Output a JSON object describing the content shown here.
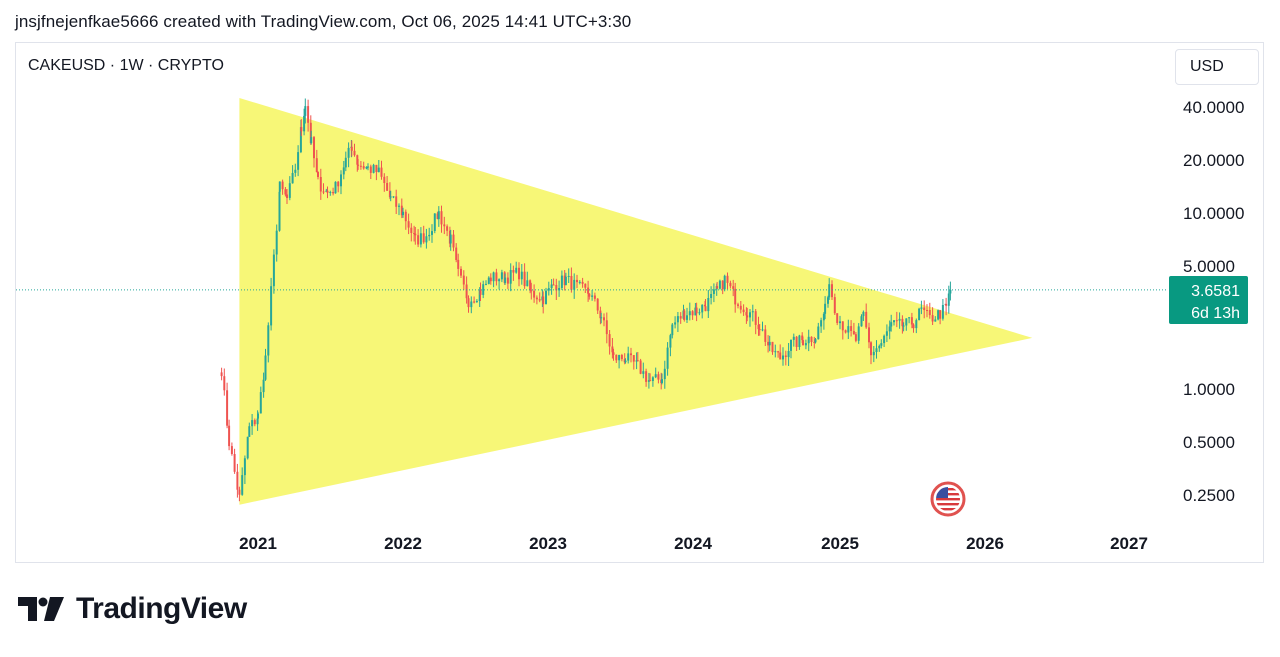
{
  "header": {
    "caption": "jnsjfnejenfkae5666 created with TradingView.com, Oct 06, 2025 14:41 UTC+3:30"
  },
  "chart": {
    "symbol_label": "CAKEUSD · 1W · CRYPTO",
    "currency_button": "USD",
    "price_tag": {
      "price": "3.6581",
      "countdown": "6d 13h"
    }
  },
  "footer": {
    "brand": "TradingView"
  },
  "colors": {
    "up": "#26a69a",
    "down": "#ef5350",
    "triangle": "#f7f777",
    "price_tag": "#089981",
    "price_line": "#26a69a"
  },
  "chart_data": {
    "type": "candlestick",
    "title": "CAKEUSD · 1W · CRYPTO",
    "y_scale": "log",
    "y_ticks": [
      "40.0000",
      "20.0000",
      "10.0000",
      "5.0000",
      "1.0000",
      "0.5000",
      "0.2500"
    ],
    "x_ticks": [
      "2021",
      "2022",
      "2023",
      "2024",
      "2025",
      "2026",
      "2027"
    ],
    "last_price": 3.6581,
    "series": [
      {
        "name": "CAKEUSD close (weekly)",
        "points": [
          [
            "2020-10-01",
            1.3
          ],
          [
            "2020-10-20",
            0.5
          ],
          [
            "2020-11-15",
            0.24
          ],
          [
            "2020-12-10",
            0.6
          ],
          [
            "2021-01-01",
            0.7
          ],
          [
            "2021-01-20",
            1.5
          ],
          [
            "2021-02-10",
            5.5
          ],
          [
            "2021-02-25",
            14
          ],
          [
            "2021-03-15",
            12
          ],
          [
            "2021-04-05",
            18
          ],
          [
            "2021-04-20",
            30
          ],
          [
            "2021-04-30",
            42
          ],
          [
            "2021-05-15",
            25
          ],
          [
            "2021-06-01",
            15
          ],
          [
            "2021-06-25",
            13
          ],
          [
            "2021-07-15",
            14
          ],
          [
            "2021-08-10",
            20
          ],
          [
            "2021-08-25",
            24
          ],
          [
            "2021-09-10",
            19
          ],
          [
            "2021-10-05",
            18
          ],
          [
            "2021-11-01",
            17
          ],
          [
            "2021-12-01",
            12
          ],
          [
            "2022-01-01",
            10
          ],
          [
            "2022-02-01",
            7
          ],
          [
            "2022-03-01",
            7.5
          ],
          [
            "2022-04-01",
            10
          ],
          [
            "2022-05-01",
            7
          ],
          [
            "2022-05-20",
            4.5
          ],
          [
            "2022-06-15",
            3.2
          ],
          [
            "2022-07-15",
            3.6
          ],
          [
            "2022-08-10",
            4.3
          ],
          [
            "2022-09-15",
            4.3
          ],
          [
            "2022-10-20",
            4.6
          ],
          [
            "2022-11-20",
            3.5
          ],
          [
            "2022-12-20",
            3.3
          ],
          [
            "2023-01-15",
            3.9
          ],
          [
            "2023-02-15",
            4.2
          ],
          [
            "2023-03-15",
            3.8
          ],
          [
            "2023-04-15",
            3.5
          ],
          [
            "2023-05-15",
            2.6
          ],
          [
            "2023-06-15",
            1.5
          ],
          [
            "2023-07-15",
            1.5
          ],
          [
            "2023-08-15",
            1.35
          ],
          [
            "2023-09-15",
            1.1
          ],
          [
            "2023-10-15",
            1.15
          ],
          [
            "2023-11-10",
            2.3
          ],
          [
            "2023-12-10",
            2.7
          ],
          [
            "2024-01-10",
            2.8
          ],
          [
            "2024-02-01",
            3.0
          ],
          [
            "2024-03-01",
            3.6
          ],
          [
            "2024-03-20",
            4.2
          ],
          [
            "2024-04-15",
            3.3
          ],
          [
            "2024-05-15",
            2.8
          ],
          [
            "2024-06-15",
            2.3
          ],
          [
            "2024-07-10",
            1.7
          ],
          [
            "2024-08-05",
            1.5
          ],
          [
            "2024-09-01",
            1.8
          ],
          [
            "2024-10-01",
            1.9
          ],
          [
            "2024-11-01",
            2.0
          ],
          [
            "2024-11-25",
            2.8
          ],
          [
            "2024-12-05",
            4.0
          ],
          [
            "2024-12-25",
            2.6
          ],
          [
            "2025-01-15",
            2.2
          ],
          [
            "2025-02-10",
            1.9
          ],
          [
            "2025-03-01",
            2.6
          ],
          [
            "2025-03-20",
            1.6
          ],
          [
            "2025-04-15",
            1.8
          ],
          [
            "2025-05-10",
            2.3
          ],
          [
            "2025-06-10",
            2.3
          ],
          [
            "2025-07-05",
            2.4
          ],
          [
            "2025-07-25",
            2.8
          ],
          [
            "2025-08-15",
            2.5
          ],
          [
            "2025-09-10",
            2.7
          ],
          [
            "2025-09-25",
            2.9
          ],
          [
            "2025-10-06",
            3.6581
          ]
        ]
      }
    ],
    "annotations": [
      {
        "type": "triangle",
        "points": [
          [
            "2020-11-15",
            0.22
          ],
          [
            "2020-11-15",
            45
          ],
          [
            "2026-05-01",
            1.95
          ]
        ]
      }
    ]
  }
}
